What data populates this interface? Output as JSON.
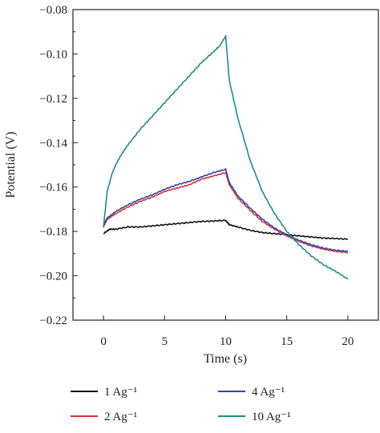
{
  "chart_data": {
    "type": "line",
    "title": "",
    "xlabel": "Time (s)",
    "ylabel": "Potential (V)",
    "xlim": [
      -2.5,
      22.5
    ],
    "ylim": [
      -0.22,
      -0.08
    ],
    "x_ticks": [
      0,
      5,
      10,
      15,
      20
    ],
    "x_tick_labels": [
      "0",
      "5",
      "10",
      "15",
      "20"
    ],
    "y_ticks": [
      -0.08,
      -0.1,
      -0.12,
      -0.14,
      -0.16,
      -0.18,
      -0.2,
      -0.22
    ],
    "y_tick_labels": [
      "−0.08",
      "−0.10",
      "−0.12",
      "−0.14",
      "−0.16",
      "−0.18",
      "−0.20",
      "−0.22"
    ],
    "grid": false,
    "legend_position": "bottom",
    "series": [
      {
        "name": "1 Ag⁻¹",
        "color": "#111111",
        "x": [
          0,
          0.5,
          1,
          2,
          3,
          4,
          5,
          6,
          7,
          8,
          9,
          10,
          10.3,
          11,
          12,
          13,
          14,
          15,
          16,
          17,
          18,
          19,
          20
        ],
        "y": [
          -0.181,
          -0.179,
          -0.179,
          -0.178,
          -0.178,
          -0.1775,
          -0.177,
          -0.1765,
          -0.176,
          -0.1755,
          -0.1753,
          -0.175,
          -0.177,
          -0.178,
          -0.1795,
          -0.1805,
          -0.181,
          -0.1815,
          -0.182,
          -0.1825,
          -0.183,
          -0.1832,
          -0.1835
        ]
      },
      {
        "name": "2 Ag⁻¹",
        "color": "#d8323c",
        "x": [
          0,
          0.3,
          1,
          2,
          3,
          4,
          5,
          6,
          7,
          8,
          9,
          10,
          10.3,
          11,
          12,
          13,
          14,
          15,
          16,
          17,
          18,
          19,
          20
        ],
        "y": [
          -0.178,
          -0.1745,
          -0.172,
          -0.169,
          -0.1665,
          -0.1645,
          -0.162,
          -0.1605,
          -0.159,
          -0.1565,
          -0.155,
          -0.1535,
          -0.159,
          -0.165,
          -0.1705,
          -0.1755,
          -0.179,
          -0.182,
          -0.1845,
          -0.1865,
          -0.188,
          -0.189,
          -0.1895
        ]
      },
      {
        "name": "4 Ag⁻¹",
        "color": "#3344aa",
        "x": [
          0,
          0.3,
          1,
          2,
          3,
          4,
          5,
          6,
          7,
          8,
          9,
          10,
          10.3,
          11,
          12,
          13,
          14,
          15,
          16,
          17,
          18,
          19,
          20
        ],
        "y": [
          -0.177,
          -0.174,
          -0.171,
          -0.168,
          -0.1655,
          -0.1635,
          -0.161,
          -0.159,
          -0.1575,
          -0.1555,
          -0.1535,
          -0.152,
          -0.158,
          -0.164,
          -0.1695,
          -0.1745,
          -0.1785,
          -0.1815,
          -0.184,
          -0.186,
          -0.1875,
          -0.1885,
          -0.189
        ]
      },
      {
        "name": "10 Ag⁻¹",
        "color": "#1f8a8a",
        "x": [
          0,
          0.3,
          0.7,
          1,
          1.5,
          2,
          3,
          4,
          5,
          6,
          7,
          8,
          9,
          9.5,
          10,
          10.3,
          11,
          12,
          13,
          14,
          15,
          16,
          17,
          18,
          19,
          20
        ],
        "y": [
          -0.178,
          -0.162,
          -0.154,
          -0.15,
          -0.145,
          -0.141,
          -0.134,
          -0.128,
          -0.122,
          -0.116,
          -0.11,
          -0.104,
          -0.099,
          -0.0965,
          -0.092,
          -0.112,
          -0.129,
          -0.148,
          -0.162,
          -0.172,
          -0.18,
          -0.186,
          -0.191,
          -0.195,
          -0.198,
          -0.2015
        ]
      }
    ]
  }
}
